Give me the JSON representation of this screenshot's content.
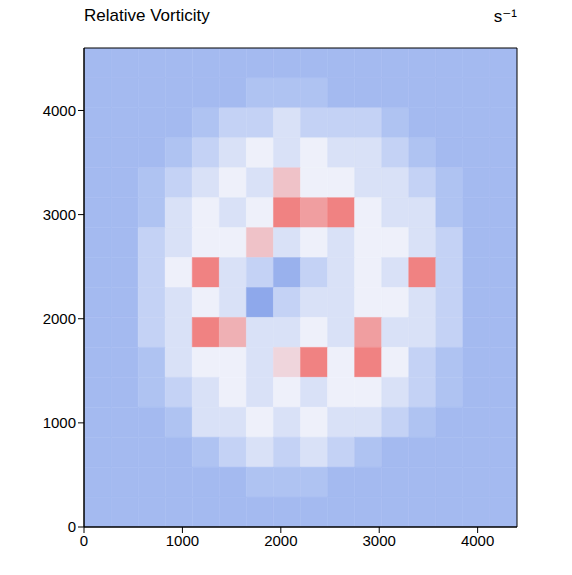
{
  "chart_data": {
    "type": "heatmap",
    "title": "Relative Vorticity",
    "unit": "s⁻¹",
    "xlim": [
      0,
      4400
    ],
    "ylim": [
      0,
      4600
    ],
    "xticks": [
      0,
      1000,
      2000,
      3000,
      4000
    ],
    "yticks": [
      0,
      1000,
      2000,
      3000,
      4000
    ],
    "zlim": [
      -0.0005,
      0.0015
    ],
    "x": [
      137.5,
      412.5,
      687.5,
      962.5,
      1237.5,
      1512.5,
      1787.5,
      2062.5,
      2337.5,
      2612.5,
      2887.5,
      3162.5,
      3437.5,
      3712.5,
      3987.5,
      4262.5
    ],
    "y": [
      4456.25,
      4168.75,
      3881.25,
      3593.75,
      3306.25,
      3018.75,
      2731.25,
      2443.75,
      2156.25,
      1868.75,
      1581.25,
      1293.75,
      1006.25,
      718.75,
      431.25,
      143.75
    ],
    "cells": [
      [
        -0.0001,
        -0.0001,
        -0.0001,
        -0.0001,
        -0.0001,
        -0.0001,
        -0.0001,
        -0.0001,
        -0.0001,
        -0.0001,
        -0.0001,
        -0.0001,
        -0.0001,
        -0.0001,
        -0.0001,
        -0.0001
      ],
      [
        -0.0001,
        -0.0001,
        -0.0001,
        -0.0001,
        -0.0001,
        -0.0001,
        0,
        0,
        0,
        -0.0001,
        -0.0001,
        -0.0001,
        -0.0001,
        -0.0001,
        -0.0001,
        -0.0001
      ],
      [
        -0.0001,
        -0.0001,
        -0.0001,
        -0.0001,
        0,
        0.0001,
        0.0001,
        0.0002,
        0.0001,
        0.0001,
        0.0001,
        0,
        -0.0001,
        -0.0001,
        -0.0001,
        -0.0001
      ],
      [
        -0.0001,
        -0.0001,
        -0.0001,
        0,
        0.0001,
        0.0002,
        0.0003,
        0.0002,
        0.0003,
        0.0002,
        0.0002,
        0.0001,
        0,
        -0.0001,
        -0.0001,
        -0.0001
      ],
      [
        -0.0001,
        -0.0001,
        0,
        0.0001,
        0.0002,
        0.0003,
        0.0002,
        0.0008,
        0.0003,
        0.0003,
        0.0002,
        0.0002,
        0.0001,
        0,
        -0.0001,
        -0.0001
      ],
      [
        -0.0001,
        -0.0001,
        0,
        0.0002,
        0.0003,
        0.0002,
        0.0003,
        0.0015,
        0.0012,
        0.0015,
        0.0003,
        0.0002,
        0.0002,
        0,
        -0.0001,
        -0.0001
      ],
      [
        -0.0001,
        -0.0001,
        0.0001,
        0.0002,
        0.0003,
        0.0003,
        0.0008,
        0.0002,
        0.0003,
        0.0002,
        0.0003,
        0.0003,
        0.0002,
        0.0001,
        -0.0001,
        -0.0001
      ],
      [
        -0.0001,
        -0.0001,
        0.0001,
        0.0003,
        0.0015,
        0.0002,
        0.0001,
        -0.0002,
        0.0001,
        0.0002,
        0.0003,
        0.0002,
        0.0015,
        0.0001,
        -0.0001,
        -0.0001
      ],
      [
        -0.0001,
        -0.0001,
        0.0001,
        0.0002,
        0.0003,
        0.0002,
        -0.0003,
        0.0001,
        0.0002,
        0.0002,
        0.0003,
        0.0003,
        0.0002,
        0.0001,
        -0.0001,
        -0.0001
      ],
      [
        -0.0001,
        -0.0001,
        0.0001,
        0.0002,
        0.0015,
        0.001,
        0.0002,
        0.0002,
        0.0003,
        0.0002,
        0.0012,
        0.0002,
        0.0002,
        0.0001,
        -0.0001,
        -0.0001
      ],
      [
        -0.0001,
        -0.0001,
        0,
        0.0002,
        0.0003,
        0.0003,
        0.0002,
        0.0006,
        0.0015,
        0.0003,
        0.0015,
        0.0003,
        0.0001,
        0,
        -0.0001,
        -0.0001
      ],
      [
        -0.0001,
        -0.0001,
        0,
        0.0001,
        0.0002,
        0.0003,
        0.0002,
        0.0003,
        0.0002,
        0.0003,
        0.0003,
        0.0002,
        0.0001,
        0,
        -0.0001,
        -0.0001
      ],
      [
        -0.0001,
        -0.0001,
        -0.0001,
        0,
        0.0002,
        0.0002,
        0.0003,
        0.0002,
        0.0003,
        0.0002,
        0.0002,
        0.0001,
        0,
        -0.0001,
        -0.0001,
        -0.0001
      ],
      [
        -0.0001,
        -0.0001,
        -0.0001,
        -0.0001,
        0,
        0.0001,
        0.0002,
        0.0001,
        0.0002,
        0.0001,
        0,
        -0.0001,
        -0.0001,
        -0.0001,
        -0.0001,
        -0.0001
      ],
      [
        -0.0001,
        -0.0001,
        -0.0001,
        -0.0001,
        -0.0001,
        -0.0001,
        0,
        0,
        0,
        -0.0001,
        -0.0001,
        -0.0001,
        -0.0001,
        -0.0001,
        -0.0001,
        -0.0001
      ],
      [
        -0.0001,
        -0.0001,
        -0.0001,
        -0.0001,
        -0.0001,
        -0.0001,
        -0.0001,
        -0.0001,
        -0.0001,
        -0.0001,
        -0.0001,
        -0.0001,
        -0.0001,
        -0.0001,
        -0.0001,
        -0.0001
      ]
    ]
  }
}
